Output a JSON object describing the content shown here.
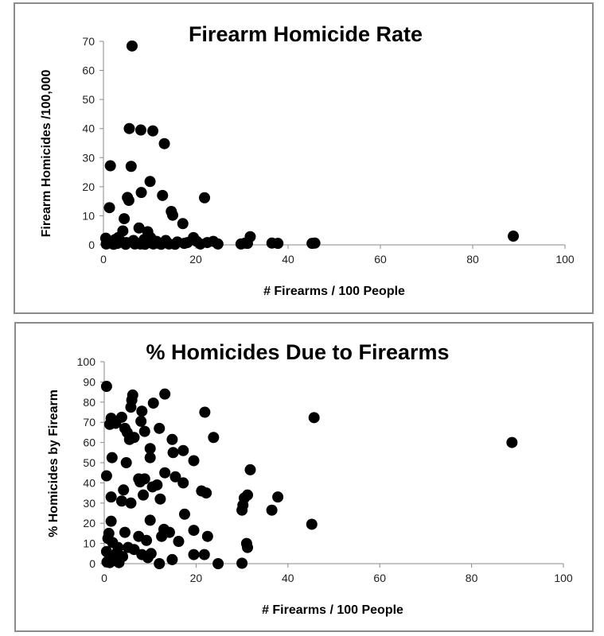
{
  "chart_data": [
    {
      "type": "scatter",
      "title": "Firearm Homicide Rate",
      "xlabel": "# Firearms / 100 People",
      "ylabel": "Firearm Homicides /100,000",
      "xlim": [
        0,
        100
      ],
      "ylim": [
        0,
        70
      ],
      "xticks": [
        0,
        20,
        40,
        60,
        80,
        100
      ],
      "yticks": [
        0,
        10,
        20,
        30,
        40,
        50,
        60,
        70
      ],
      "grid": false,
      "legend": "none",
      "marker_color": "#000000",
      "series": [
        {
          "points": [
            [
              6.2,
              68.4
            ],
            [
              5.6,
              40.0
            ],
            [
              8.1,
              39.5
            ],
            [
              10.7,
              39.2
            ],
            [
              13.2,
              34.8
            ],
            [
              1.5,
              27.2
            ],
            [
              6.0,
              27.0
            ],
            [
              10.1,
              21.8
            ],
            [
              8.2,
              18.0
            ],
            [
              12.8,
              17.0
            ],
            [
              21.9,
              16.2
            ],
            [
              5.2,
              16.3
            ],
            [
              5.5,
              15.3
            ],
            [
              1.3,
              12.8
            ],
            [
              14.7,
              11.5
            ],
            [
              15.0,
              10.2
            ],
            [
              4.5,
              9.0
            ],
            [
              17.2,
              7.3
            ],
            [
              7.7,
              5.8
            ],
            [
              9.6,
              4.5
            ],
            [
              4.2,
              4.8
            ],
            [
              10.2,
              2.5
            ],
            [
              3.2,
              2.5
            ],
            [
              19.5,
              2.5
            ],
            [
              31.8,
              2.8
            ],
            [
              88.8,
              3.0
            ],
            [
              0.5,
              2.3
            ],
            [
              1.0,
              1.5
            ],
            [
              2.5,
              1.8
            ],
            [
              3.8,
              1.2
            ],
            [
              5.0,
              0.8
            ],
            [
              6.5,
              1.5
            ],
            [
              7.2,
              0.5
            ],
            [
              8.8,
              1.8
            ],
            [
              9.5,
              0.8
            ],
            [
              11.5,
              1.2
            ],
            [
              12.0,
              0.5
            ],
            [
              13.5,
              1.5
            ],
            [
              14.2,
              0.3
            ],
            [
              16.0,
              1.0
            ],
            [
              17.5,
              0.5
            ],
            [
              18.2,
              0.8
            ],
            [
              20.2,
              1.2
            ],
            [
              21.0,
              0.3
            ],
            [
              22.5,
              0.8
            ],
            [
              23.8,
              1.2
            ],
            [
              24.8,
              0.3
            ],
            [
              29.8,
              0.3
            ],
            [
              30.7,
              0.6
            ],
            [
              31.2,
              0.5
            ],
            [
              36.5,
              0.6
            ],
            [
              37.8,
              0.5
            ],
            [
              45.2,
              0.5
            ],
            [
              45.8,
              0.6
            ],
            [
              0.6,
              0.3
            ],
            [
              1.8,
              0.5
            ],
            [
              2.2,
              0.2
            ],
            [
              3.0,
              0.5
            ],
            [
              4.8,
              0.2
            ],
            [
              6.8,
              0.3
            ],
            [
              8.0,
              0.3
            ],
            [
              9.0,
              0.2
            ],
            [
              10.8,
              0.3
            ],
            [
              12.5,
              0.2
            ],
            [
              15.5,
              0.2
            ]
          ]
        }
      ]
    },
    {
      "type": "scatter",
      "title": "% Homicides Due to Firearms",
      "xlabel": "# Firearms / 100 People",
      "ylabel": "% Homicides by Firearm",
      "xlim": [
        0,
        100
      ],
      "ylim": [
        0,
        100
      ],
      "xticks": [
        0,
        20,
        40,
        60,
        80,
        100
      ],
      "yticks": [
        0,
        10,
        20,
        30,
        40,
        50,
        60,
        70,
        80,
        90,
        100
      ],
      "grid": false,
      "legend": "none",
      "marker_color": "#000000",
      "series": [
        {
          "points": [
            [
              0.5,
              87.8
            ],
            [
              6.2,
              83.5
            ],
            [
              13.2,
              84.0
            ],
            [
              6.0,
              81.0
            ],
            [
              10.7,
              79.5
            ],
            [
              5.8,
              77.5
            ],
            [
              8.2,
              75.5
            ],
            [
              21.9,
              75.0
            ],
            [
              1.5,
              72.0
            ],
            [
              3.8,
              72.5
            ],
            [
              45.7,
              72.3
            ],
            [
              1.2,
              69.0
            ],
            [
              8.0,
              70.5
            ],
            [
              2.5,
              69.5
            ],
            [
              4.5,
              67.0
            ],
            [
              12.0,
              67.0
            ],
            [
              5.0,
              65.0
            ],
            [
              8.8,
              65.5
            ],
            [
              6.5,
              62.5
            ],
            [
              5.5,
              61.5
            ],
            [
              14.8,
              61.5
            ],
            [
              23.8,
              62.5
            ],
            [
              88.8,
              60.0
            ],
            [
              10.0,
              57.0
            ],
            [
              17.2,
              56.0
            ],
            [
              15.0,
              55.0
            ],
            [
              1.7,
              52.5
            ],
            [
              10.0,
              52.5
            ],
            [
              19.5,
              51.0
            ],
            [
              4.8,
              50.0
            ],
            [
              31.8,
              46.5
            ],
            [
              13.2,
              45.0
            ],
            [
              0.5,
              43.5
            ],
            [
              15.5,
              43.0
            ],
            [
              7.5,
              42.0
            ],
            [
              8.8,
              42.0
            ],
            [
              7.8,
              40.5
            ],
            [
              17.2,
              40.0
            ],
            [
              11.5,
              39.0
            ],
            [
              10.5,
              38.0
            ],
            [
              4.2,
              36.5
            ],
            [
              21.2,
              36.0
            ],
            [
              22.2,
              35.0
            ],
            [
              8.5,
              34.0
            ],
            [
              31.2,
              34.0
            ],
            [
              37.8,
              33.0
            ],
            [
              1.5,
              33.0
            ],
            [
              30.5,
              32.5
            ],
            [
              12.2,
              32.0
            ],
            [
              3.8,
              31.0
            ],
            [
              5.8,
              30.0
            ],
            [
              30.2,
              29.0
            ],
            [
              30.0,
              26.5
            ],
            [
              36.5,
              26.5
            ],
            [
              17.5,
              24.5
            ],
            [
              1.5,
              21.0
            ],
            [
              10.0,
              21.5
            ],
            [
              45.2,
              19.5
            ],
            [
              13.0,
              17.0
            ],
            [
              19.5,
              16.5
            ],
            [
              4.5,
              15.5
            ],
            [
              14.2,
              15.5
            ],
            [
              1.0,
              15.0
            ],
            [
              7.5,
              13.5
            ],
            [
              12.5,
              13.5
            ],
            [
              22.5,
              13.5
            ],
            [
              0.8,
              12.5
            ],
            [
              9.2,
              11.5
            ],
            [
              16.2,
              11.0
            ],
            [
              31.0,
              10.0
            ],
            [
              1.8,
              10.5
            ],
            [
              3.0,
              8.0
            ],
            [
              5.2,
              8.0
            ],
            [
              31.2,
              8.0
            ],
            [
              6.5,
              7.0
            ],
            [
              0.5,
              6.0
            ],
            [
              2.8,
              5.5
            ],
            [
              8.2,
              4.5
            ],
            [
              10.2,
              5.0
            ],
            [
              19.5,
              4.5
            ],
            [
              21.8,
              4.5
            ],
            [
              4.0,
              3.5
            ],
            [
              9.5,
              3.0
            ],
            [
              1.5,
              2.5
            ],
            [
              2.0,
              1.5
            ],
            [
              14.8,
              2.0
            ],
            [
              0.6,
              0.8
            ],
            [
              1.2,
              0.5
            ],
            [
              12.0,
              0.0
            ],
            [
              24.8,
              0.0
            ],
            [
              30.0,
              0.2
            ],
            [
              3.2,
              0.5
            ]
          ]
        }
      ]
    }
  ]
}
